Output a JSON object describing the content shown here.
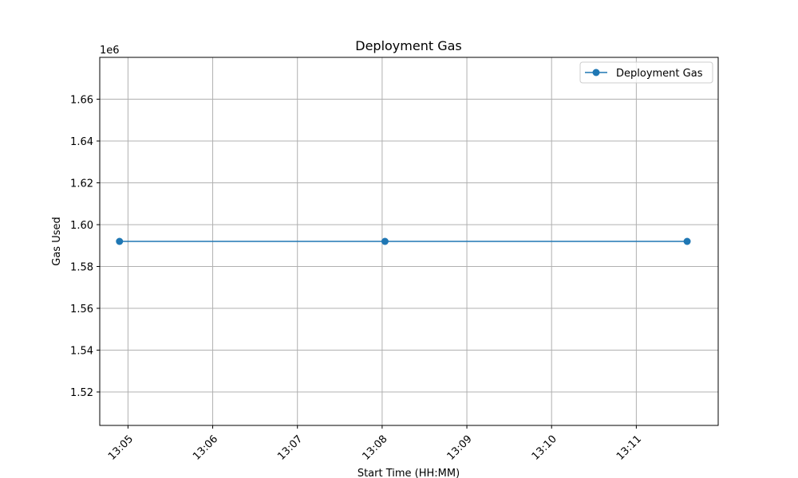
{
  "chart_data": {
    "type": "line",
    "title": "Deployment Gas",
    "xlabel": "Start Time (HH:MM)",
    "ylabel": "Gas Used",
    "y_offset_text": "1e6",
    "xlim": [
      "13:04:40",
      "13:11:58"
    ],
    "ylim": [
      1504000,
      1680000
    ],
    "x_ticks": [
      "13:05",
      "13:06",
      "13:07",
      "13:08",
      "13:09",
      "13:10",
      "13:11"
    ],
    "y_ticks": [
      1.52,
      1.54,
      1.56,
      1.58,
      1.6,
      1.62,
      1.64,
      1.66
    ],
    "y_tick_labels": [
      "1.52",
      "1.54",
      "1.56",
      "1.58",
      "1.60",
      "1.62",
      "1.64",
      "1.66"
    ],
    "grid": true,
    "legend_position": "top-right",
    "series": [
      {
        "name": "Deployment Gas",
        "color": "#1f77b4",
        "marker": "circle",
        "points": [
          {
            "x": "13:04:54",
            "y": 1592000
          },
          {
            "x": "13:08:02",
            "y": 1592000
          },
          {
            "x": "13:11:36",
            "y": 1592000
          }
        ]
      }
    ]
  }
}
